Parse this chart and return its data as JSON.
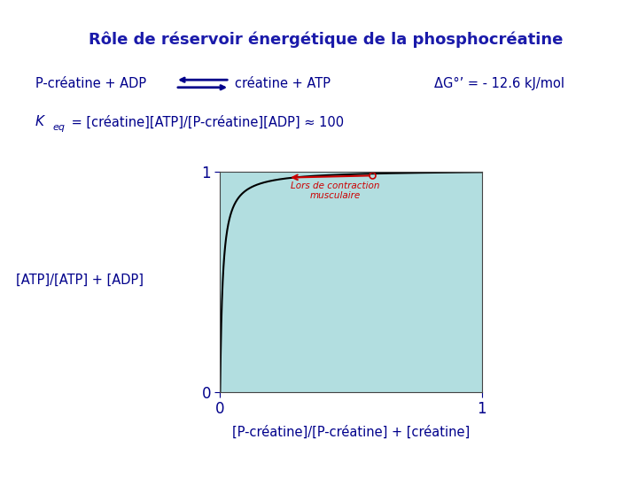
{
  "title": "Rôle de réservoir énergétique de la phosphocréatine",
  "title_bg": "#FFFF00",
  "title_color": "#1a1aaa",
  "bg_color": "#ffffff",
  "plot_bg": "#b2dee0",
  "reaction_part1": "P-créatine + ADP",
  "reaction_part2": "créatine + ATP",
  "delta_g": "ΔG°’ = - 12.6 kJ/mol",
  "keq_rest": " = [créatine][ATP]/[P-créatine][ADP] ≈ 100",
  "ylabel": "[ATP]/[ATP] + [ADP]",
  "xlabel": "[P-créatine]/[P-créatine] + [créatine]",
  "annotation": "Lors de contraction\nmusculaire",
  "Keq": 100,
  "text_color": "#00008B",
  "curve_color": "#000000",
  "arrow_color": "#cc0000"
}
